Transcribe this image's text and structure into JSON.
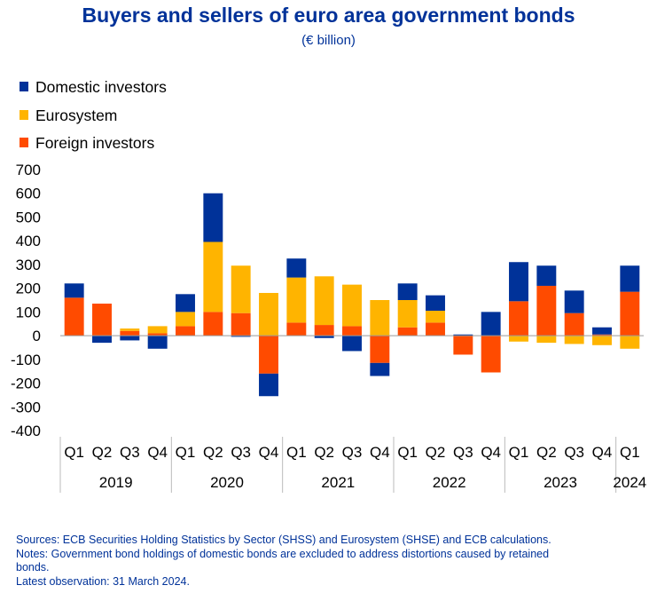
{
  "title": "Buyers and sellers of euro area government bonds",
  "subtitle": "(€ billion)",
  "chart_data": {
    "type": "bar",
    "stacked": true,
    "categories": [
      "Q1",
      "Q2",
      "Q3",
      "Q4",
      "Q1",
      "Q2",
      "Q3",
      "Q4",
      "Q1",
      "Q2",
      "Q3",
      "Q4",
      "Q1",
      "Q2",
      "Q3",
      "Q4",
      "Q1",
      "Q2",
      "Q3",
      "Q4",
      "Q1"
    ],
    "years": [
      {
        "label": "2019",
        "quarters": 4
      },
      {
        "label": "2020",
        "quarters": 4
      },
      {
        "label": "2021",
        "quarters": 4
      },
      {
        "label": "2022",
        "quarters": 4
      },
      {
        "label": "2023",
        "quarters": 4
      },
      {
        "label": "2024",
        "quarters": 1
      }
    ],
    "series": [
      {
        "name": "Domestic investors",
        "color": "#003299",
        "values": [
          60,
          -30,
          -20,
          -55,
          75,
          205,
          -5,
          -95,
          80,
          -10,
          -65,
          -55,
          70,
          65,
          5,
          100,
          165,
          85,
          95,
          30,
          110
        ]
      },
      {
        "name": "Eurosystem",
        "color": "#FFB400",
        "values": [
          0,
          0,
          10,
          30,
          60,
          295,
          200,
          180,
          190,
          205,
          175,
          150,
          115,
          50,
          0,
          0,
          -25,
          -30,
          -35,
          -40,
          -55
        ]
      },
      {
        "name": "Foreign investors",
        "color": "#FF4B00",
        "values": [
          160,
          135,
          20,
          10,
          40,
          100,
          95,
          -160,
          55,
          45,
          40,
          -115,
          35,
          55,
          -80,
          -155,
          145,
          210,
          95,
          5,
          185
        ]
      }
    ],
    "ylim": [
      -400,
      700
    ],
    "yticks": [
      700,
      600,
      500,
      400,
      300,
      200,
      100,
      0,
      -100,
      -200,
      -300,
      -400
    ],
    "legend": "top-left",
    "grid": false
  },
  "notes": [
    "Sources: ECB Securities Holding Statistics by Sector (SHSS) and Eurosystem (SHSE) and ECB calculations.",
    "Notes: Government bond holdings of domestic bonds are excluded to address distortions caused by retained bonds.",
    "Latest observation: 31 March 2024."
  ]
}
